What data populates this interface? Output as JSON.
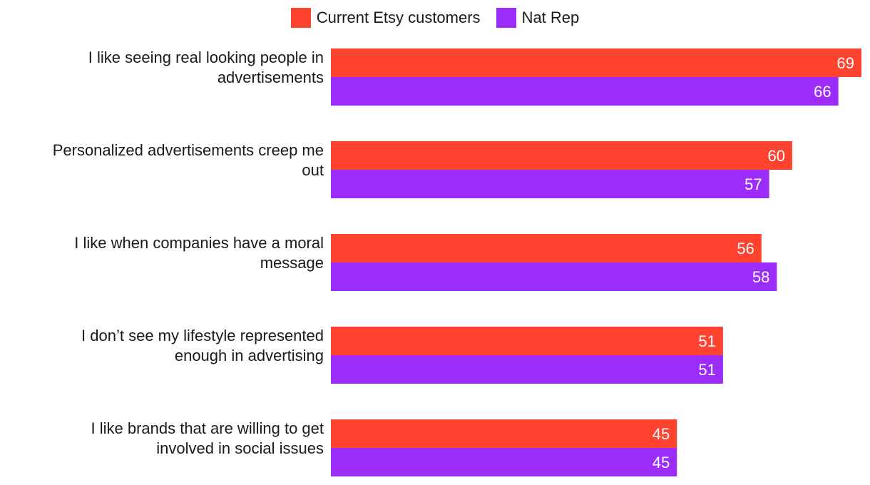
{
  "chart_data": {
    "type": "bar",
    "orientation": "horizontal",
    "title": "",
    "xlabel": "",
    "ylabel": "",
    "xlim": [
      0,
      69
    ],
    "grid": false,
    "legend_position": "top-center",
    "categories": [
      "I like seeing real looking people in advertisements",
      "Personalized advertisements creep me out",
      "I like when companies have a moral message",
      "I don’t see my lifestyle represented enough in advertising",
      "I like brands that are willing to get involved in social issues"
    ],
    "category_lines": [
      [
        "I like seeing real looking people in",
        "advertisements"
      ],
      [
        "Personalized advertisements creep me",
        "out"
      ],
      [
        "I like when companies have a moral",
        "message"
      ],
      [
        "I don’t see my lifestyle represented",
        "enough in advertising"
      ],
      [
        "I like brands that are willing to get",
        "involved in social issues"
      ]
    ],
    "series": [
      {
        "name": "Current Etsy customers",
        "color": "#ff432e",
        "values": [
          69,
          60,
          56,
          51,
          45
        ]
      },
      {
        "name": "Nat Rep",
        "color": "#9b2cfb",
        "values": [
          66,
          57,
          58,
          51,
          45
        ]
      }
    ]
  }
}
